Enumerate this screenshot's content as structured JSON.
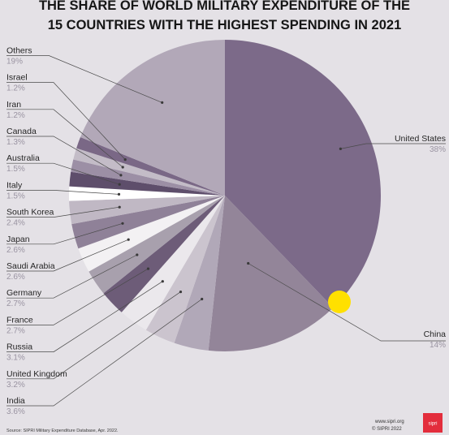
{
  "chart_data": {
    "type": "pie",
    "title_lines": [
      "THE SHARE OF WORLD MILITARY EXPENDITURE OF THE",
      "15 COUNTRIES WITH THE HIGHEST SPENDING IN 2021"
    ],
    "unit": "%",
    "slices": [
      {
        "name": "United States",
        "value": 38,
        "value_label": "38%",
        "color": "#7c6a89"
      },
      {
        "name": "China",
        "value": 14,
        "value_label": "14%",
        "color": "#938599"
      },
      {
        "name": "India",
        "value": 3.6,
        "value_label": "3.6%",
        "color": "#b1a8b8"
      },
      {
        "name": "United Kingdom",
        "value": 3.2,
        "value_label": "3.2%",
        "color": "#cbc4ce"
      },
      {
        "name": "Russia",
        "value": 3.1,
        "value_label": "3.1%",
        "color": "#ebe8ec"
      },
      {
        "name": "France",
        "value": 2.7,
        "value_label": "2.7%",
        "color": "#6d5c78"
      },
      {
        "name": "Germany",
        "value": 2.7,
        "value_label": "2.7%",
        "color": "#a8a0ad"
      },
      {
        "name": "Saudi Arabia",
        "value": 2.6,
        "value_label": "2.6%",
        "color": "#f3f1f3"
      },
      {
        "name": "Japan",
        "value": 2.6,
        "value_label": "2.6%",
        "color": "#8f8198"
      },
      {
        "name": "South Korea",
        "value": 2.4,
        "value_label": "2.4%",
        "color": "#c0b8c4"
      },
      {
        "name": "Italy",
        "value": 1.5,
        "value_label": "1.5%",
        "color": "#ffffff"
      },
      {
        "name": "Australia",
        "value": 1.5,
        "value_label": "1.5%",
        "color": "#5e4e6b"
      },
      {
        "name": "Canada",
        "value": 1.3,
        "value_label": "1.3%",
        "color": "#9c8fa5"
      },
      {
        "name": "Iran",
        "value": 1.2,
        "value_label": "1.2%",
        "color": "#c3bcc7"
      },
      {
        "name": "Israel",
        "value": 1.2,
        "value_label": "1.2%",
        "color": "#7a6886"
      },
      {
        "name": "Others",
        "value": 19,
        "value_label": "19%",
        "color": "#b2a8b8"
      }
    ]
  },
  "source": "Source: SIPRI Military Expenditure Database, Apr. 2022.",
  "brand": {
    "url": "www.sipri.org",
    "copyright": "© SIPRI 2022",
    "logo_text": "sipri"
  }
}
